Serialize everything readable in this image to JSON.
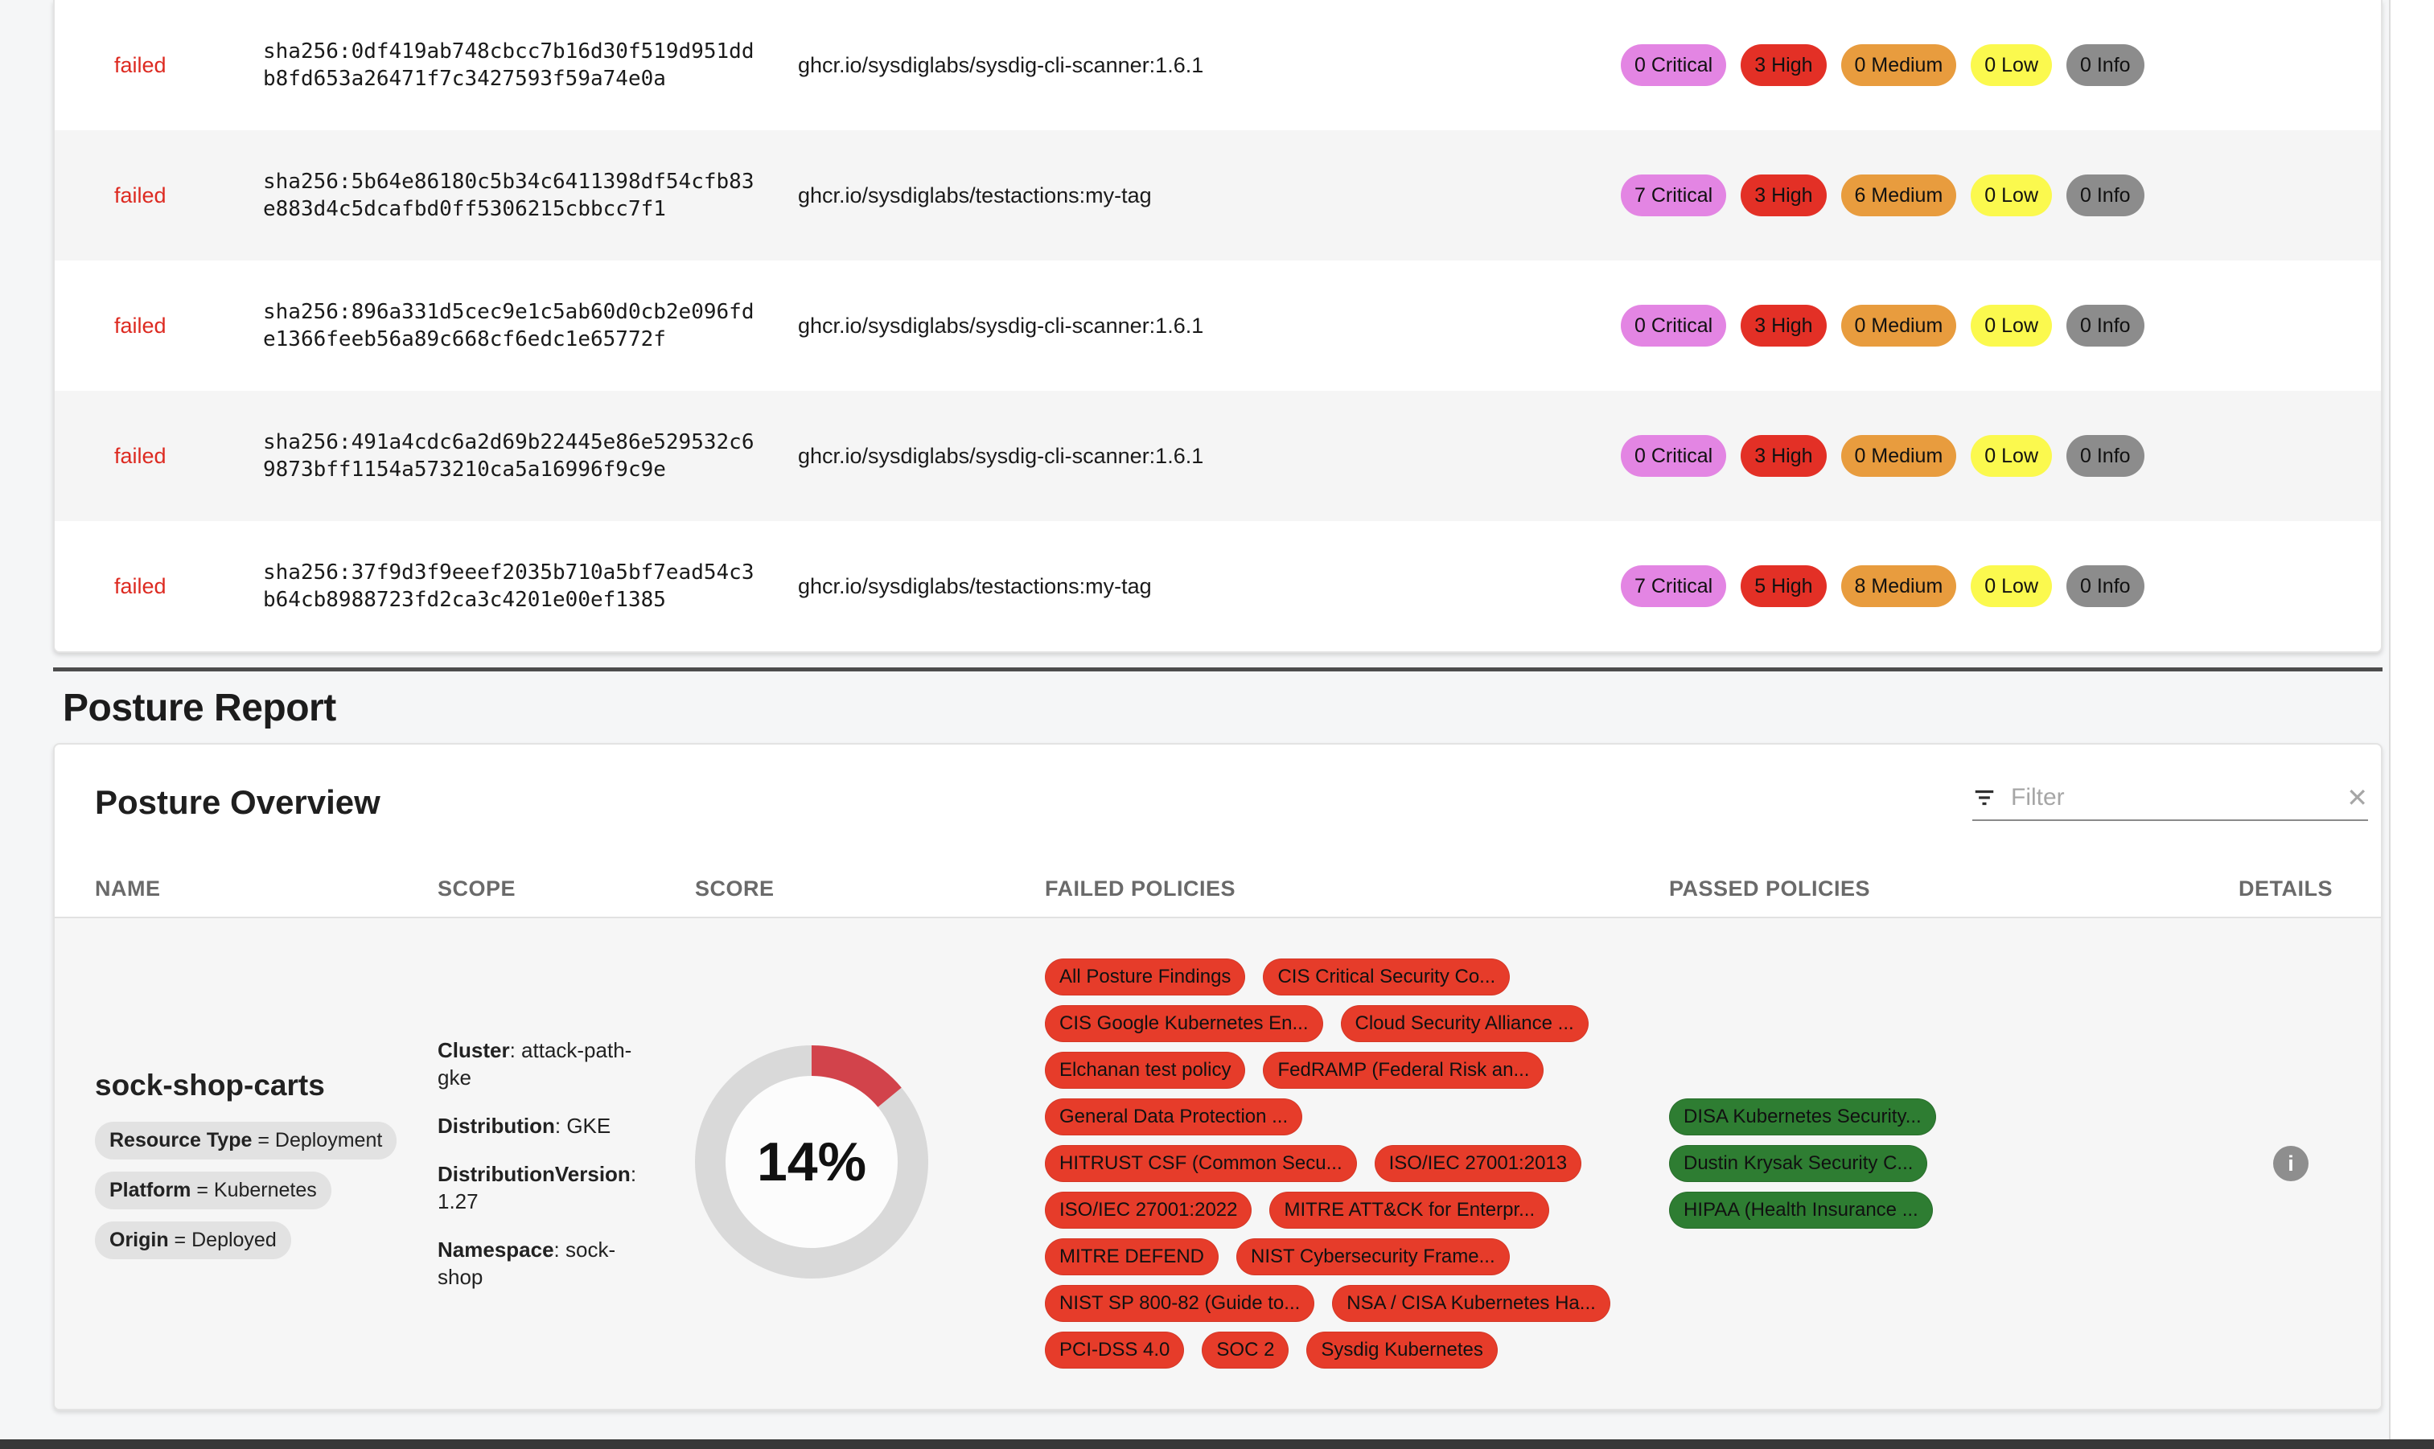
{
  "colors": {
    "critical_badge": "#e385e3",
    "high_badge": "#e33026",
    "medium_badge": "#e89c3e",
    "low_badge": "#fbf94e",
    "info_badge": "#8c8c8c",
    "failed_status_text": "#dd2a21",
    "failed_policy_pill": "#e63c2a",
    "passed_policy_pill": "#2e7d32",
    "score_arc": "#d2434b",
    "score_track": "#d9d9d9"
  },
  "scan": {
    "rows": [
      {
        "status": "failed",
        "digest_line1": "sha256:0df419ab748cbcc7b16d30f519d951dd",
        "digest_line2": "b8fd653a26471f7c3427593f59a74e0a",
        "image": "ghcr.io/sysdiglabs/sysdig-cli-scanner:1.6.1",
        "badges": {
          "critical": "0 Critical",
          "high": "3 High",
          "medium": "0 Medium",
          "low": "0 Low",
          "info": "0 Info"
        }
      },
      {
        "status": "failed",
        "digest_line1": "sha256:5b64e86180c5b34c6411398df54cfb83",
        "digest_line2": "e883d4c5dcafbd0ff5306215cbbcc7f1",
        "image": "ghcr.io/sysdiglabs/testactions:my-tag",
        "badges": {
          "critical": "7 Critical",
          "high": "3 High",
          "medium": "6 Medium",
          "low": "0 Low",
          "info": "0 Info"
        }
      },
      {
        "status": "failed",
        "digest_line1": "sha256:896a331d5cec9e1c5ab60d0cb2e096fd",
        "digest_line2": "e1366feeb56a89c668cf6edc1e65772f",
        "image": "ghcr.io/sysdiglabs/sysdig-cli-scanner:1.6.1",
        "badges": {
          "critical": "0 Critical",
          "high": "3 High",
          "medium": "0 Medium",
          "low": "0 Low",
          "info": "0 Info"
        }
      },
      {
        "status": "failed",
        "digest_line1": "sha256:491a4cdc6a2d69b22445e86e529532c6",
        "digest_line2": "9873bff1154a573210ca5a16996f9c9e",
        "image": "ghcr.io/sysdiglabs/sysdig-cli-scanner:1.6.1",
        "badges": {
          "critical": "0 Critical",
          "high": "3 High",
          "medium": "0 Medium",
          "low": "0 Low",
          "info": "0 Info"
        }
      },
      {
        "status": "failed",
        "digest_line1": "sha256:37f9d3f9eeef2035b710a5bf7ead54c3",
        "digest_line2": "b64cb8988723fd2ca3c4201e00ef1385",
        "image": "ghcr.io/sysdiglabs/testactions:my-tag",
        "badges": {
          "critical": "7 Critical",
          "high": "5 High",
          "medium": "8 Medium",
          "low": "0 Low",
          "info": "0 Info"
        }
      }
    ]
  },
  "posture": {
    "title": "Posture Report",
    "overview_title": "Posture Overview",
    "filter_placeholder": "Filter",
    "filter_clear_icon": "✕",
    "columns": [
      "NAME",
      "SCOPE",
      "SCORE",
      "FAILED POLICIES",
      "PASSED POLICIES",
      "DETAILS"
    ],
    "kv_separator": ": ",
    "tag_separator": " = ",
    "row": {
      "name": "sock-shop-carts",
      "tags": [
        {
          "key": "Resource Type",
          "value": "Deployment"
        },
        {
          "key": "Platform",
          "value": "Kubernetes"
        },
        {
          "key": "Origin",
          "value": "Deployed"
        }
      ],
      "scope": [
        {
          "key": "Cluster",
          "value": "attack-path-gke"
        },
        {
          "key": "Distribution",
          "value": "GKE"
        },
        {
          "key": "DistributionVersion",
          "value": "1.27"
        },
        {
          "key": "Namespace",
          "value": "sock-shop"
        }
      ],
      "score_percent": 14,
      "score_label": "14%",
      "failed_policies": [
        "All Posture Findings",
        "CIS Critical Security Co...",
        "CIS Google Kubernetes En...",
        "Cloud Security Alliance ...",
        "Elchanan test policy",
        "FedRAMP (Federal Risk an...",
        "General Data Protection ...",
        "HITRUST CSF (Common Secu...",
        "ISO/IEC 27001:2013",
        "ISO/IEC 27001:2022",
        "MITRE ATT&CK for Enterpr...",
        "MITRE DEFEND",
        "NIST Cybersecurity Frame...",
        "NIST SP 800-82 (Guide to...",
        "NSA / CISA Kubernetes Ha...",
        "PCI-DSS 4.0",
        "SOC 2",
        "Sysdig Kubernetes"
      ],
      "passed_policies": [
        "DISA Kubernetes Security...",
        "Dustin Krysak Security C...",
        "HIPAA (Health Insurance ..."
      ],
      "details_icon": "i"
    }
  }
}
